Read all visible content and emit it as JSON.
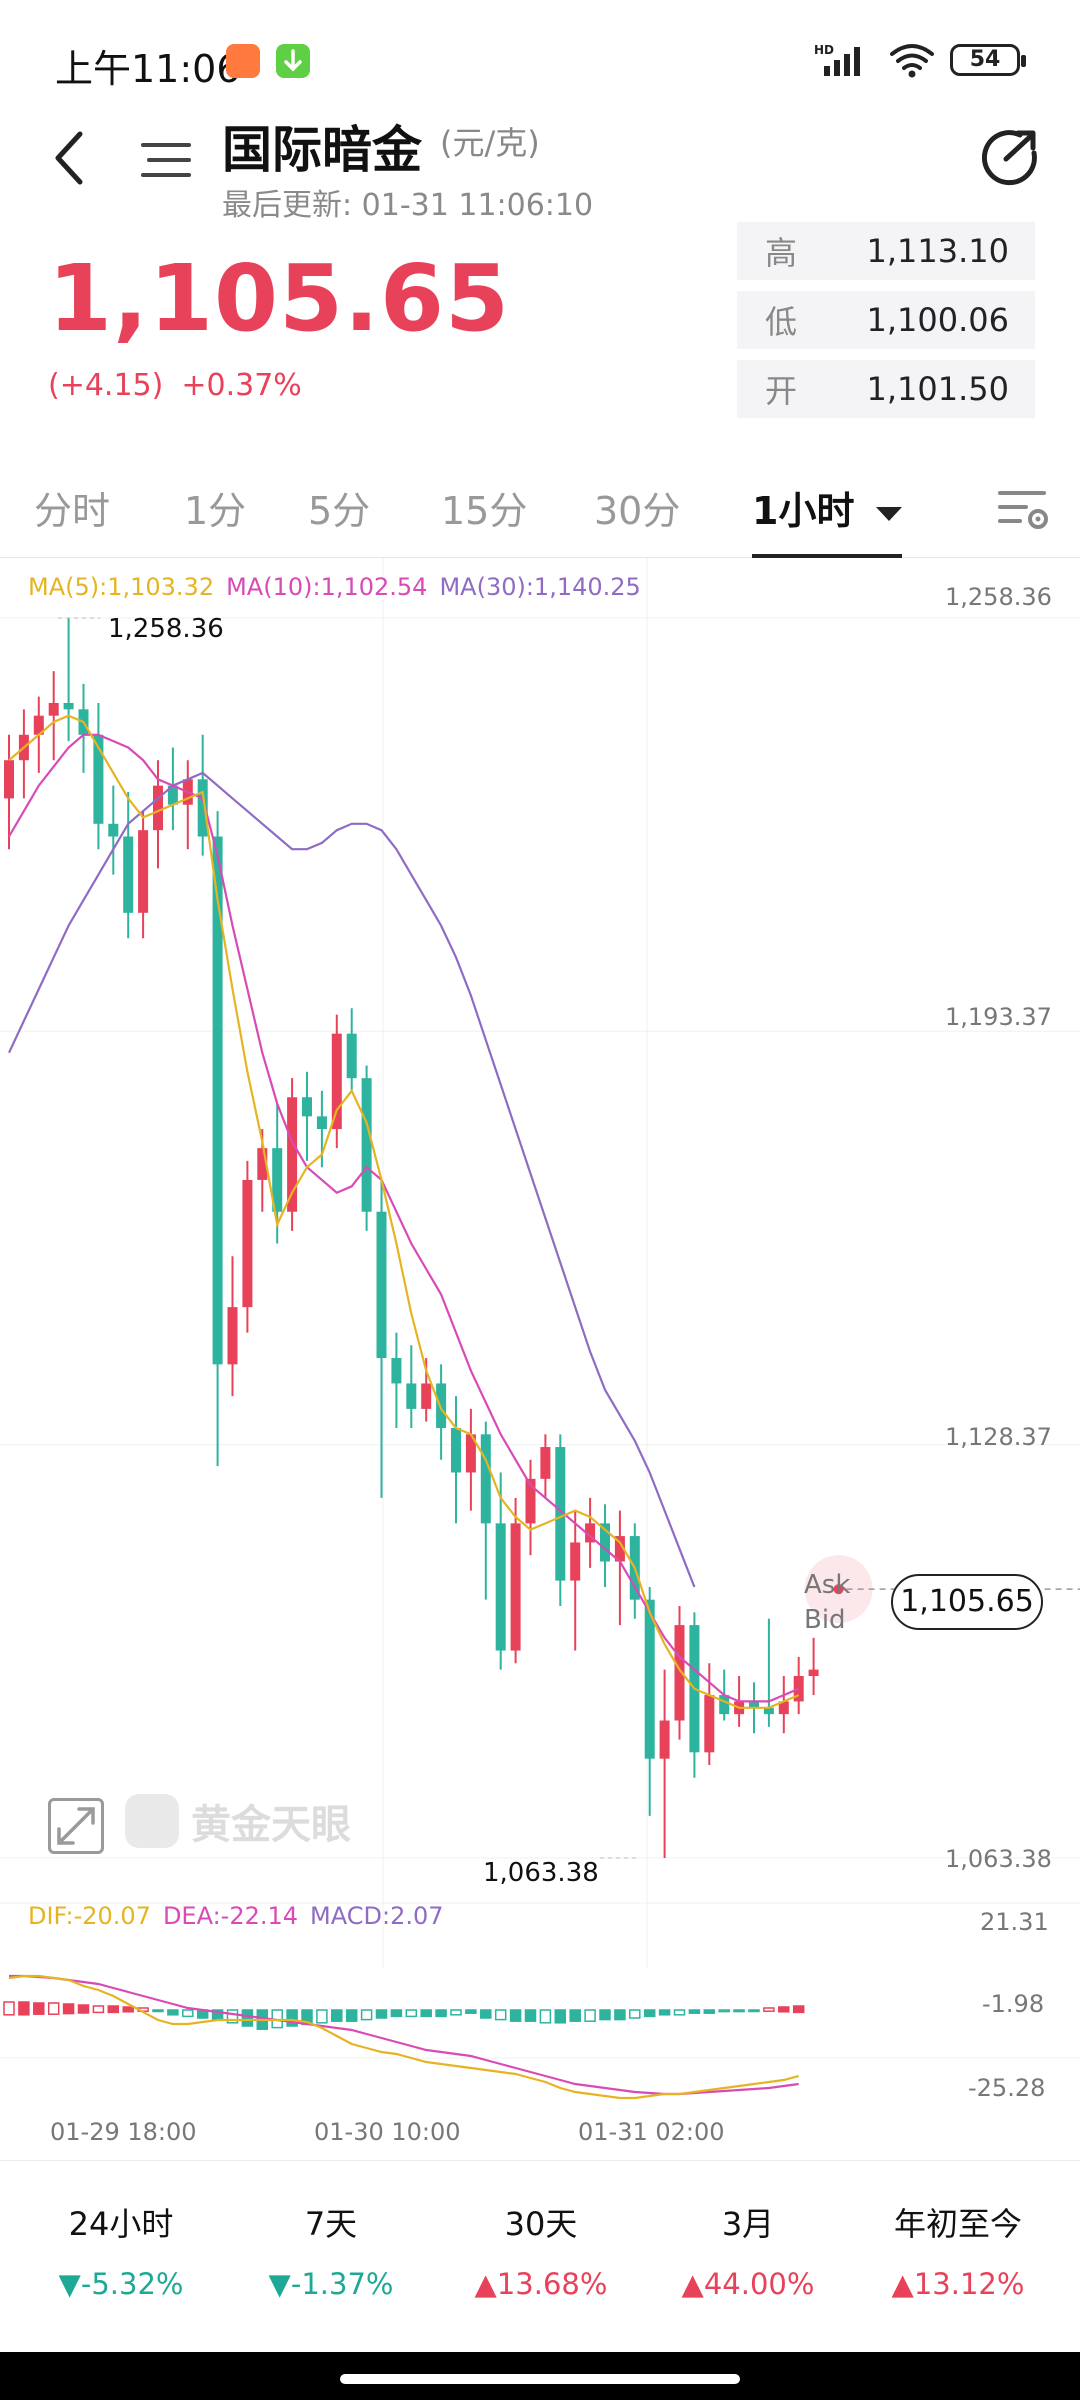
{
  "status_bar": {
    "time": "上午11:06",
    "battery": "54",
    "network": "HD"
  },
  "header": {
    "title": "国际暗金",
    "unit": "(元/克)",
    "updated": "最后更新: 01-31 11:06:10"
  },
  "quote": {
    "price": "1,105.65",
    "change_abs": "(+4.15)",
    "change_pct": "+0.37%",
    "high_label": "高",
    "high": "1,113.10",
    "low_label": "低",
    "low": "1,100.06",
    "open_label": "开",
    "open": "1,101.50"
  },
  "tabs": [
    {
      "label": "分时"
    },
    {
      "label": "1分"
    },
    {
      "label": "5分"
    },
    {
      "label": "15分"
    },
    {
      "label": "30分"
    },
    {
      "label": "1小时"
    }
  ],
  "ma_legend": {
    "ma5": "MA(5):1,103.32",
    "ma10": "MA(10):1,102.54",
    "ma30": "MA(30):1,140.25"
  },
  "macd_legend": {
    "dif": "DIF:-20.07",
    "dea": "DEA:-22.14",
    "macd": "MACD:2.07"
  },
  "price_axis": [
    "1,258.36",
    "1,193.37",
    "1,128.37",
    "1,063.38"
  ],
  "macd_axis": [
    "21.31",
    "-1.98",
    "-25.28"
  ],
  "chart_labels": {
    "max": "1,258.36",
    "min": "1,063.38",
    "ask": "Ask",
    "bid": "Bid",
    "current": "1,105.65"
  },
  "time_axis": [
    "01-29 18:00",
    "01-30 10:00",
    "01-31 02:00"
  ],
  "watermark": "黄金天眼",
  "colors": {
    "up": "#e8425a",
    "down": "#2db39e",
    "ma5": "#e6b422",
    "ma10": "#d94ab7",
    "ma30": "#8f6bc4"
  },
  "chart_data": {
    "type": "candlestick",
    "ylim": [
      1063.38,
      1258.36
    ],
    "candles": [
      {
        "o": 1230,
        "h": 1240,
        "l": 1222,
        "c": 1236
      },
      {
        "o": 1236,
        "h": 1244,
        "l": 1230,
        "c": 1240
      },
      {
        "o": 1240,
        "h": 1246,
        "l": 1234,
        "c": 1243
      },
      {
        "o": 1243,
        "h": 1250,
        "l": 1236,
        "c": 1245
      },
      {
        "o": 1245,
        "h": 1258.36,
        "l": 1239,
        "c": 1244
      },
      {
        "o": 1244,
        "h": 1248,
        "l": 1234,
        "c": 1240
      },
      {
        "o": 1240,
        "h": 1245,
        "l": 1222,
        "c": 1226
      },
      {
        "o": 1226,
        "h": 1232,
        "l": 1218,
        "c": 1224
      },
      {
        "o": 1224,
        "h": 1231,
        "l": 1208,
        "c": 1212
      },
      {
        "o": 1212,
        "h": 1228,
        "l": 1208,
        "c": 1225
      },
      {
        "o": 1225,
        "h": 1236,
        "l": 1219,
        "c": 1232
      },
      {
        "o": 1232,
        "h": 1238,
        "l": 1225,
        "c": 1229
      },
      {
        "o": 1229,
        "h": 1236,
        "l": 1222,
        "c": 1233
      },
      {
        "o": 1233,
        "h": 1240,
        "l": 1221,
        "c": 1224
      },
      {
        "o": 1224,
        "h": 1228,
        "l": 1125,
        "c": 1141
      },
      {
        "o": 1141,
        "h": 1158,
        "l": 1136,
        "c": 1150
      },
      {
        "o": 1150,
        "h": 1173,
        "l": 1146,
        "c": 1170
      },
      {
        "o": 1170,
        "h": 1178,
        "l": 1165,
        "c": 1175
      },
      {
        "o": 1175,
        "h": 1182,
        "l": 1160,
        "c": 1165
      },
      {
        "o": 1165,
        "h": 1186,
        "l": 1162,
        "c": 1183
      },
      {
        "o": 1183,
        "h": 1187,
        "l": 1173,
        "c": 1180
      },
      {
        "o": 1180,
        "h": 1184,
        "l": 1172,
        "c": 1178
      },
      {
        "o": 1178,
        "h": 1196,
        "l": 1175,
        "c": 1193
      },
      {
        "o": 1193,
        "h": 1197,
        "l": 1184,
        "c": 1186
      },
      {
        "o": 1186,
        "h": 1188,
        "l": 1162,
        "c": 1165
      },
      {
        "o": 1165,
        "h": 1170,
        "l": 1120,
        "c": 1142
      },
      {
        "o": 1142,
        "h": 1146,
        "l": 1131,
        "c": 1138
      },
      {
        "o": 1138,
        "h": 1144,
        "l": 1131,
        "c": 1134
      },
      {
        "o": 1134,
        "h": 1142,
        "l": 1132,
        "c": 1138
      },
      {
        "o": 1138,
        "h": 1141,
        "l": 1126,
        "c": 1131
      },
      {
        "o": 1131,
        "h": 1136,
        "l": 1116,
        "c": 1124
      },
      {
        "o": 1124,
        "h": 1134,
        "l": 1118,
        "c": 1130
      },
      {
        "o": 1130,
        "h": 1132,
        "l": 1104,
        "c": 1116
      },
      {
        "o": 1116,
        "h": 1124,
        "l": 1093,
        "c": 1096
      },
      {
        "o": 1096,
        "h": 1120,
        "l": 1094,
        "c": 1116
      },
      {
        "o": 1116,
        "h": 1126,
        "l": 1111,
        "c": 1123
      },
      {
        "o": 1123,
        "h": 1130,
        "l": 1120,
        "c": 1128
      },
      {
        "o": 1128,
        "h": 1130,
        "l": 1103,
        "c": 1107
      },
      {
        "o": 1107,
        "h": 1118,
        "l": 1096,
        "c": 1113
      },
      {
        "o": 1113,
        "h": 1120,
        "l": 1109,
        "c": 1116
      },
      {
        "o": 1116,
        "h": 1119,
        "l": 1106,
        "c": 1110
      },
      {
        "o": 1110,
        "h": 1118,
        "l": 1100,
        "c": 1114
      },
      {
        "o": 1114,
        "h": 1116,
        "l": 1101,
        "c": 1104
      },
      {
        "o": 1104,
        "h": 1106,
        "l": 1070,
        "c": 1079
      },
      {
        "o": 1079,
        "h": 1093,
        "l": 1063.38,
        "c": 1085
      },
      {
        "o": 1085,
        "h": 1103,
        "l": 1082,
        "c": 1100
      },
      {
        "o": 1100,
        "h": 1102,
        "l": 1076,
        "c": 1080
      },
      {
        "o": 1080,
        "h": 1094,
        "l": 1078,
        "c": 1089
      },
      {
        "o": 1089,
        "h": 1093,
        "l": 1085,
        "c": 1086
      },
      {
        "o": 1086,
        "h": 1092,
        "l": 1084,
        "c": 1088
      },
      {
        "o": 1088,
        "h": 1091,
        "l": 1083,
        "c": 1087
      },
      {
        "o": 1087,
        "h": 1101,
        "l": 1084,
        "c": 1086
      },
      {
        "o": 1086,
        "h": 1092,
        "l": 1083,
        "c": 1088
      },
      {
        "o": 1088,
        "h": 1095,
        "l": 1086,
        "c": 1092
      },
      {
        "o": 1092,
        "h": 1098,
        "l": 1089,
        "c": 1093
      }
    ],
    "ma5": [
      1236,
      1238,
      1240,
      1242,
      1243,
      1242,
      1238,
      1234,
      1230,
      1227,
      1228,
      1229,
      1230,
      1231,
      1214,
      1200,
      1187,
      1176,
      1163,
      1168,
      1172,
      1174,
      1181,
      1184,
      1179,
      1170,
      1160,
      1149,
      1140,
      1134,
      1131,
      1130,
      1126,
      1120,
      1117,
      1115,
      1116,
      1117,
      1118,
      1117,
      1115,
      1113,
      1109,
      1102,
      1097,
      1093,
      1090,
      1089,
      1088,
      1087,
      1087,
      1087,
      1088,
      1089
    ],
    "ma10": [
      1224,
      1228,
      1232,
      1235,
      1238,
      1240,
      1240,
      1239,
      1238,
      1236,
      1233,
      1232,
      1231,
      1230,
      1221,
      1210,
      1200,
      1190,
      1182,
      1176,
      1172,
      1170,
      1168,
      1169,
      1172,
      1170,
      1165,
      1160,
      1156,
      1152,
      1146,
      1140,
      1135,
      1130,
      1126,
      1122,
      1120,
      1118,
      1116,
      1114,
      1112,
      1110,
      1106,
      1102,
      1098,
      1095,
      1093,
      1091,
      1089,
      1088,
      1088,
      1088,
      1089,
      1090
    ],
    "ma30": [
      1190,
      1195,
      1200,
      1205,
      1210,
      1214,
      1218,
      1222,
      1226,
      1228,
      1230,
      1232,
      1233,
      1234,
      1232,
      1230,
      1228,
      1226,
      1224,
      1222,
      1222,
      1223,
      1225,
      1226,
      1226,
      1225,
      1222,
      1218,
      1214,
      1210,
      1205,
      1199,
      1192,
      1185,
      1178,
      1171,
      1164,
      1157,
      1150,
      1143,
      1137,
      1133,
      1129,
      1124,
      1118,
      1112,
      1106
    ]
  },
  "performance": [
    {
      "label": "24小时",
      "value": "-5.32%",
      "dir": "down"
    },
    {
      "label": "7天",
      "value": "-1.37%",
      "dir": "down"
    },
    {
      "label": "30天",
      "value": "13.68%",
      "dir": "up"
    },
    {
      "label": "3月",
      "value": "44.00%",
      "dir": "up"
    },
    {
      "label": "年初至今",
      "value": "13.12%",
      "dir": "up"
    }
  ]
}
